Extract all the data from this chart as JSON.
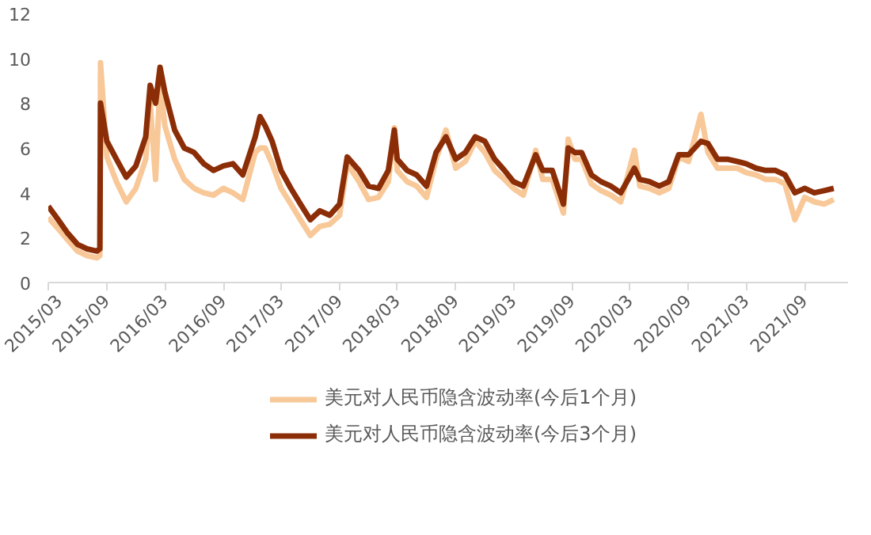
{
  "chart_data": {
    "type": "line",
    "x": [
      "2015-03-01",
      "2015-04-01",
      "2015-05-01",
      "2015-06-01",
      "2015-07-01",
      "2015-08-01",
      "2015-08-10",
      "2015-08-12",
      "2015-09-01",
      "2015-10-01",
      "2015-11-01",
      "2015-12-01",
      "2016-01-01",
      "2016-01-15",
      "2016-02-01",
      "2016-02-15",
      "2016-03-01",
      "2016-04-01",
      "2016-05-01",
      "2016-06-01",
      "2016-07-01",
      "2016-08-01",
      "2016-09-01",
      "2016-10-01",
      "2016-11-01",
      "2016-12-10",
      "2016-12-25",
      "2017-01-10",
      "2017-02-01",
      "2017-03-01",
      "2017-04-01",
      "2017-05-01",
      "2017-06-01",
      "2017-07-01",
      "2017-08-01",
      "2017-09-01",
      "2017-09-25",
      "2017-11-01",
      "2017-12-01",
      "2018-01-01",
      "2018-02-01",
      "2018-02-20",
      "2018-03-01",
      "2018-04-01",
      "2018-05-01",
      "2018-06-01",
      "2018-07-01",
      "2018-08-01",
      "2018-09-01",
      "2018-10-01",
      "2018-11-01",
      "2018-12-01",
      "2019-01-01",
      "2019-02-01",
      "2019-03-01",
      "2019-04-01",
      "2019-05-10",
      "2019-06-01",
      "2019-07-01",
      "2019-08-05",
      "2019-08-20",
      "2019-09-10",
      "2019-10-01",
      "2019-11-01",
      "2019-12-01",
      "2020-01-01",
      "2020-02-01",
      "2020-03-15",
      "2020-04-01",
      "2020-05-01",
      "2020-06-01",
      "2020-07-01",
      "2020-08-01",
      "2020-09-01",
      "2020-10-10",
      "2020-11-01",
      "2020-12-01",
      "2021-01-01",
      "2021-02-01",
      "2021-03-01",
      "2021-04-01",
      "2021-05-01",
      "2021-06-01",
      "2021-07-01",
      "2021-08-01",
      "2021-09-01",
      "2021-10-01",
      "2021-11-01",
      "2021-12-01"
    ],
    "series": [
      {
        "name": "美元对人民币隐含波动率(今后1个月)",
        "color": "#f8c898",
        "values": [
          2.9,
          2.4,
          1.9,
          1.4,
          1.2,
          1.1,
          1.2,
          9.8,
          5.6,
          4.5,
          3.6,
          4.2,
          5.5,
          8.0,
          4.6,
          9.0,
          7.0,
          5.5,
          4.6,
          4.2,
          4.0,
          3.9,
          4.2,
          4.0,
          3.7,
          5.8,
          6.0,
          6.0,
          5.3,
          4.2,
          3.5,
          2.8,
          2.1,
          2.5,
          2.6,
          3.0,
          5.3,
          4.5,
          3.7,
          3.8,
          4.5,
          6.9,
          5.0,
          4.5,
          4.3,
          3.8,
          5.5,
          6.8,
          5.1,
          5.4,
          6.3,
          5.8,
          5.0,
          4.6,
          4.2,
          3.9,
          5.9,
          4.6,
          4.6,
          3.1,
          6.4,
          5.5,
          5.5,
          4.4,
          4.1,
          3.9,
          3.6,
          5.9,
          4.3,
          4.2,
          4.0,
          4.2,
          5.6,
          5.4,
          7.5,
          5.8,
          5.1,
          5.1,
          5.1,
          4.9,
          4.8,
          4.6,
          4.6,
          4.4,
          2.8,
          3.8,
          3.6,
          3.5,
          3.7
        ]
      },
      {
        "name": "美元对人民币隐含波动率(今后3个月)",
        "color": "#8b2e07",
        "values": [
          3.4,
          2.8,
          2.2,
          1.7,
          1.5,
          1.4,
          1.5,
          8.0,
          6.3,
          5.5,
          4.7,
          5.2,
          6.5,
          8.8,
          8.0,
          9.6,
          8.5,
          6.8,
          6.0,
          5.8,
          5.3,
          5.0,
          5.2,
          5.3,
          4.8,
          6.5,
          7.4,
          7.0,
          6.3,
          5.0,
          4.2,
          3.5,
          2.8,
          3.2,
          3.0,
          3.5,
          5.6,
          5.0,
          4.3,
          4.2,
          5.0,
          6.8,
          5.5,
          5.0,
          4.8,
          4.3,
          5.8,
          6.5,
          5.5,
          5.8,
          6.5,
          6.3,
          5.5,
          5.0,
          4.5,
          4.3,
          5.7,
          5.0,
          5.0,
          3.5,
          6.0,
          5.8,
          5.8,
          4.8,
          4.5,
          4.3,
          4.0,
          5.1,
          4.6,
          4.5,
          4.3,
          4.5,
          5.7,
          5.7,
          6.3,
          6.2,
          5.5,
          5.5,
          5.4,
          5.3,
          5.1,
          5.0,
          5.0,
          4.8,
          4.0,
          4.2,
          4.0,
          4.1,
          4.2
        ]
      }
    ],
    "ylim": [
      0,
      12
    ],
    "yticks": [
      0,
      2,
      4,
      6,
      8,
      10,
      12
    ],
    "xlim": [
      "2015-03-01",
      "2022-01-15"
    ],
    "xticks": [
      {
        "value": "2015-03-01",
        "label": "2015/03"
      },
      {
        "value": "2015-09-01",
        "label": "2015/09"
      },
      {
        "value": "2016-03-01",
        "label": "2016/03"
      },
      {
        "value": "2016-09-01",
        "label": "2016/09"
      },
      {
        "value": "2017-03-01",
        "label": "2017/03"
      },
      {
        "value": "2017-09-01",
        "label": "2017/09"
      },
      {
        "value": "2018-03-01",
        "label": "2018/03"
      },
      {
        "value": "2018-09-01",
        "label": "2018/09"
      },
      {
        "value": "2019-03-01",
        "label": "2019/03"
      },
      {
        "value": "2019-09-01",
        "label": "2019/09"
      },
      {
        "value": "2020-03-01",
        "label": "2020/03"
      },
      {
        "value": "2020-09-01",
        "label": "2020/09"
      },
      {
        "value": "2021-03-01",
        "label": "2021/03"
      },
      {
        "value": "2021-09-01",
        "label": "2021/09"
      }
    ],
    "grid": false,
    "legend": "bottom",
    "marker": "none",
    "line_style": "solid"
  }
}
